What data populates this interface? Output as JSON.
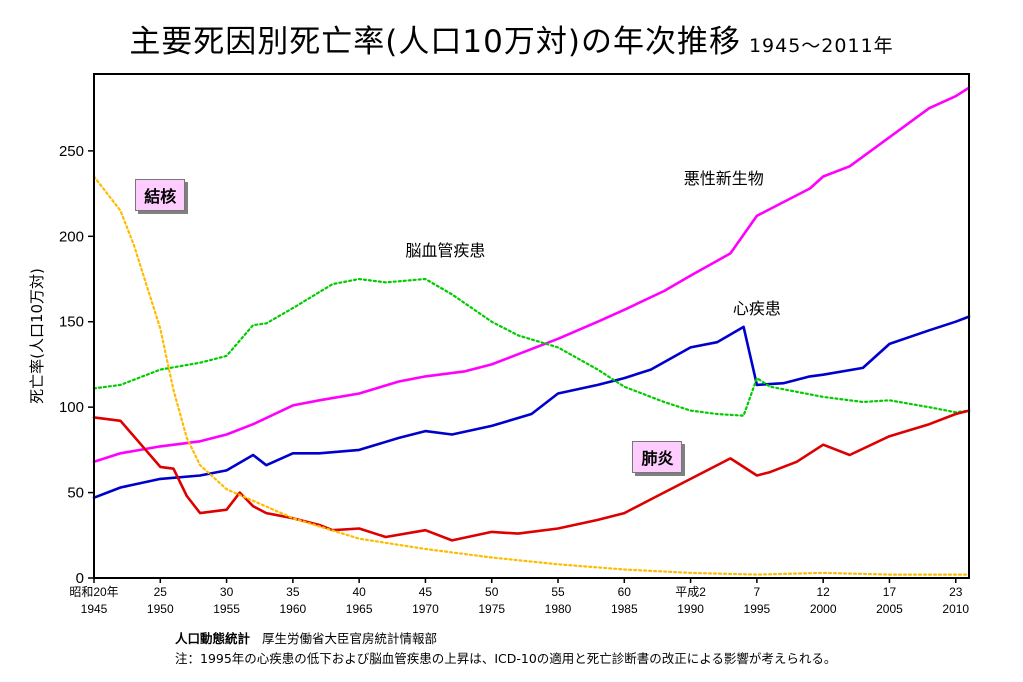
{
  "chart_data": {
    "type": "line",
    "title": "主要死因別死亡率(人口10万対)の年次推移",
    "subtitle": "1945～2011年",
    "ylabel": "死亡率(人口10万対)",
    "xlim": [
      1945,
      2011
    ],
    "ylim": [
      0,
      295
    ],
    "yticks": [
      "0",
      "50",
      "100",
      "150",
      "200",
      "250"
    ],
    "xticks": [
      {
        "x": 1945,
        "line1": "昭和20年",
        "line2": "1945"
      },
      {
        "x": 1950,
        "line1": "25",
        "line2": "1950"
      },
      {
        "x": 1955,
        "line1": "30",
        "line2": "1955"
      },
      {
        "x": 1960,
        "line1": "35",
        "line2": "1960"
      },
      {
        "x": 1965,
        "line1": "40",
        "line2": "1965"
      },
      {
        "x": 1970,
        "line1": "45",
        "line2": "1970"
      },
      {
        "x": 1975,
        "line1": "50",
        "line2": "1975"
      },
      {
        "x": 1980,
        "line1": "55",
        "line2": "1980"
      },
      {
        "x": 1985,
        "line1": "60",
        "line2": "1985"
      },
      {
        "x": 1990,
        "line1": "平成2",
        "line2": "1990"
      },
      {
        "x": 1995,
        "line1": "7",
        "line2": "1995"
      },
      {
        "x": 2000,
        "line1": "12",
        "line2": "2000"
      },
      {
        "x": 2005,
        "line1": "17",
        "line2": "2005"
      },
      {
        "x": 2010,
        "line1": "23",
        "line2": "2010"
      }
    ],
    "grid": false,
    "series": [
      {
        "name": "悪性新生物",
        "color": "#ff00ff",
        "style": "solid",
        "x": [
          1945,
          1947,
          1950,
          1953,
          1955,
          1957,
          1960,
          1962,
          1965,
          1968,
          1970,
          1973,
          1975,
          1977,
          1980,
          1983,
          1985,
          1988,
          1990,
          1993,
          1995,
          1996,
          1997,
          1999,
          2000,
          2002,
          2005,
          2008,
          2010,
          2011
        ],
        "y": [
          68,
          73,
          77,
          80,
          84,
          90,
          101,
          104,
          108,
          115,
          118,
          121,
          125,
          131,
          140,
          150,
          157,
          168,
          177,
          190,
          212,
          216,
          220,
          228,
          235,
          241,
          258,
          275,
          282,
          287
        ]
      },
      {
        "name": "心疾患",
        "color": "#0000cc",
        "style": "solid",
        "x": [
          1945,
          1947,
          1950,
          1953,
          1955,
          1957,
          1958,
          1960,
          1962,
          1965,
          1968,
          1970,
          1972,
          1975,
          1978,
          1980,
          1983,
          1985,
          1987,
          1990,
          1992,
          1994,
          1995,
          1997,
          1999,
          2000,
          2003,
          2005,
          2008,
          2010,
          2011
        ],
        "y": [
          47,
          53,
          58,
          60,
          63,
          72,
          66,
          73,
          73,
          75,
          82,
          86,
          84,
          89,
          96,
          108,
          113,
          117,
          122,
          135,
          138,
          147,
          113,
          114,
          118,
          119,
          123,
          137,
          145,
          150,
          153
        ]
      },
      {
        "name": "脳血管疾患",
        "color": "#00cc00",
        "style": "dotted",
        "x": [
          1945,
          1947,
          1950,
          1953,
          1955,
          1957,
          1958,
          1960,
          1963,
          1965,
          1967,
          1970,
          1972,
          1975,
          1977,
          1980,
          1983,
          1985,
          1988,
          1990,
          1992,
          1994,
          1995,
          1996,
          2000,
          2003,
          2005,
          2008,
          2010,
          2011
        ],
        "y": [
          111,
          113,
          122,
          126,
          130,
          148,
          149,
          158,
          172,
          175,
          173,
          175,
          166,
          150,
          142,
          135,
          122,
          112,
          103,
          98,
          96,
          95,
          117,
          112,
          106,
          103,
          104,
          100,
          97,
          98
        ]
      },
      {
        "name": "肺炎",
        "color": "#dd0000",
        "style": "solid",
        "x": [
          1945,
          1947,
          1948,
          1950,
          1951,
          1952,
          1953,
          1955,
          1956,
          1957,
          1958,
          1960,
          1962,
          1963,
          1965,
          1967,
          1970,
          1972,
          1975,
          1977,
          1980,
          1983,
          1985,
          1987,
          1990,
          1993,
          1995,
          1996,
          1998,
          2000,
          2002,
          2005,
          2008,
          2010,
          2011
        ],
        "y": [
          94,
          92,
          83,
          65,
          64,
          48,
          38,
          40,
          50,
          42,
          38,
          35,
          31,
          28,
          29,
          24,
          28,
          22,
          27,
          26,
          29,
          34,
          38,
          46,
          58,
          70,
          60,
          62,
          68,
          78,
          72,
          83,
          90,
          96,
          98
        ]
      },
      {
        "name": "結核",
        "color": "#ffbb00",
        "style": "dotted",
        "x": [
          1945,
          1947,
          1948,
          1950,
          1951,
          1952,
          1953,
          1955,
          1960,
          1965,
          1970,
          1975,
          1980,
          1985,
          1990,
          1995,
          2000,
          2005,
          2011
        ],
        "y": [
          235,
          215,
          195,
          146,
          110,
          82,
          66,
          52,
          35,
          23,
          17,
          12,
          8,
          5,
          3,
          2,
          3,
          2,
          2
        ]
      }
    ],
    "labels": [
      {
        "text": "悪性新生物",
        "x": 1992.5,
        "y": 234,
        "boxed": false
      },
      {
        "text": "脳血管疾患",
        "x": 1971.5,
        "y": 192,
        "boxed": false
      },
      {
        "text": "心疾患",
        "x": 1995,
        "y": 158,
        "boxed": false
      },
      {
        "text": "結核",
        "x": 1950,
        "y": 224,
        "boxed": true
      },
      {
        "text": "肺炎",
        "x": 1987.5,
        "y": 71,
        "boxed": true
      }
    ]
  },
  "source": {
    "org": "人口動態統計",
    "dept": "厚生労働省大臣官房統計情報部"
  },
  "note": "注：1995年の心疾患の低下および脳血管疾患の上昇は、ICD-10の適用と死亡診断書の改正による影響が考えられる。"
}
